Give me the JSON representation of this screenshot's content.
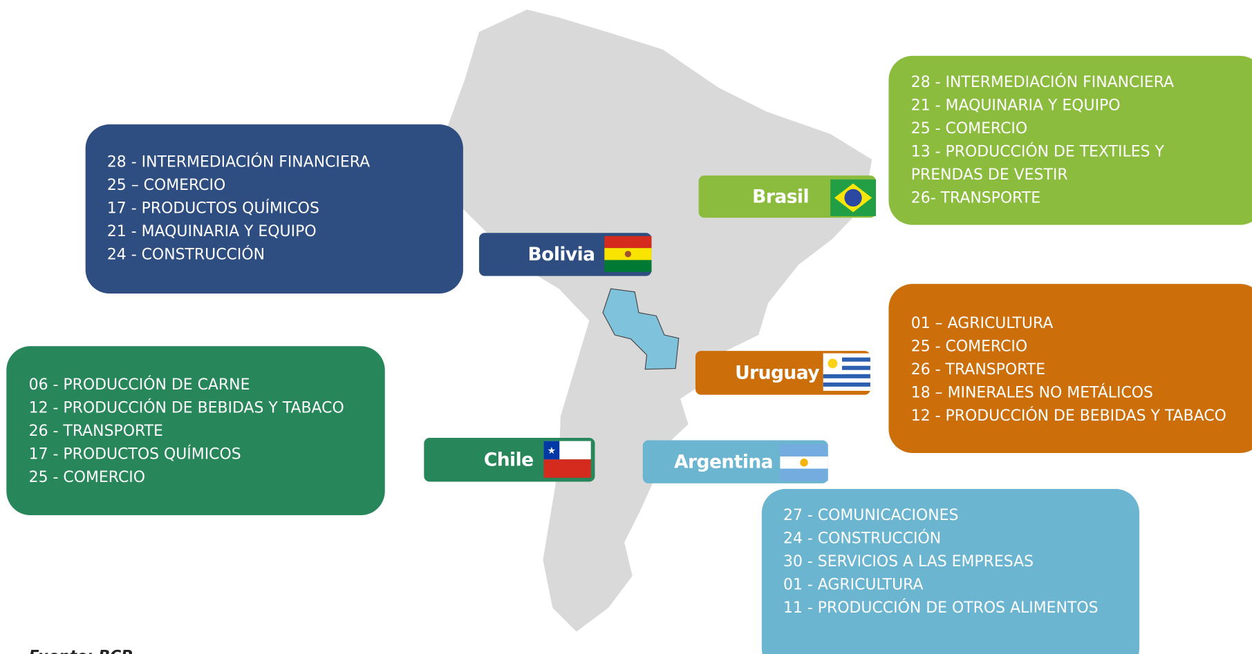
{
  "countries": [
    {
      "name": "Bolivia",
      "items": [
        "28 - INTERMEDIACIÓN FINANCIERA",
        "25 – COMERCIO",
        "17 - PRODUCTOS QUÍMICOS",
        "21 - MAQUINARIA Y EQUIPO",
        "24 - CONSTRUCCIÓN"
      ]
    },
    {
      "name": "Brasil",
      "items": [
        "28 - INTERMEDIACIÓN FINANCIERA",
        "21 - MAQUINARIA Y EQUIPO",
        "25 - COMERCIO",
        "13 - PRODUCCIÓN DE TEXTILES Y",
        "PRENDAS DE VESTIR",
        "26- TRANSPORTE"
      ]
    },
    {
      "name": "Chile",
      "items": [
        "06 - PRODUCCIÓN DE CARNE",
        "12 - PRODUCCIÓN DE BEBIDAS Y TABACO",
        "26 - TRANSPORTE",
        "17 - PRODUCTOS QUÍMICOS",
        "25 - COMERCIO"
      ]
    },
    {
      "name": "Uruguay",
      "items": [
        "01 – AGRICULTURA",
        "25 - COMERCIO",
        "26 - TRANSPORTE",
        "18 – MINERALES NO METÁLICOS",
        "12 - PRODUCCIÓN DE BEBIDAS Y TABACO"
      ]
    },
    {
      "name": "Argentina",
      "items": [
        "27 - COMUNICACIONES",
        "24 - CONSTRUCCIÓN",
        "30 - SERVICIOS A LAS EMPRESAS",
        "01 - AGRICULTURA",
        "11 - PRODUCCIÓN DE OTROS ALIMENTOS"
      ]
    }
  ],
  "source": "Fuente: BCP"
}
